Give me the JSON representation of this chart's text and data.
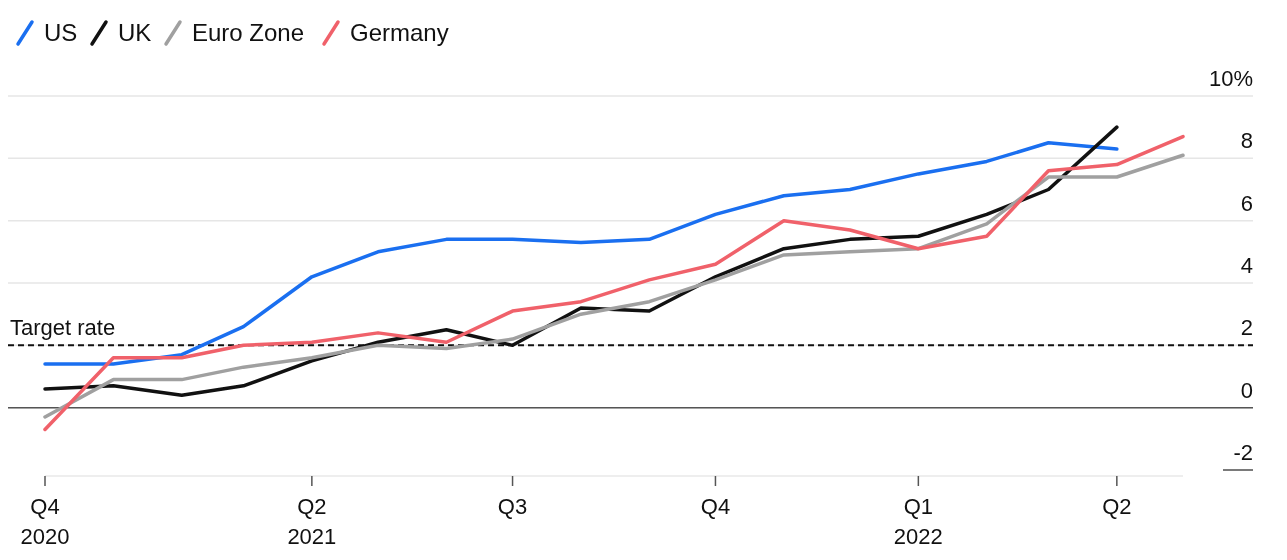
{
  "chart_data": {
    "type": "line",
    "x": [
      "2020-12",
      "2021-01",
      "2021-02",
      "2021-03",
      "2021-04",
      "2021-05",
      "2021-06",
      "2021-07",
      "2021-08",
      "2021-09",
      "2021-10",
      "2021-11",
      "2021-12",
      "2022-01",
      "2022-02",
      "2022-03",
      "2022-04",
      "2022-05"
    ],
    "series": [
      {
        "name": "US",
        "color": "#1a6ff0",
        "values": [
          1.4,
          1.4,
          1.7,
          2.6,
          4.2,
          5.0,
          5.4,
          5.4,
          5.3,
          5.4,
          6.2,
          6.8,
          7.0,
          7.5,
          7.9,
          8.5,
          8.3,
          null
        ]
      },
      {
        "name": "UK",
        "color": "#111111",
        "values": [
          0.6,
          0.7,
          0.4,
          0.7,
          1.5,
          2.1,
          2.5,
          2.0,
          3.2,
          3.1,
          4.2,
          5.1,
          5.4,
          5.5,
          6.2,
          7.0,
          9.0,
          null
        ]
      },
      {
        "name": "Euro Zone",
        "color": "#a0a0a0",
        "values": [
          -0.3,
          0.9,
          0.9,
          1.3,
          1.6,
          2.0,
          1.9,
          2.2,
          3.0,
          3.4,
          4.1,
          4.9,
          5.0,
          5.1,
          5.9,
          7.4,
          7.4,
          8.1
        ]
      },
      {
        "name": "Germany",
        "color": "#f0616a",
        "values": [
          -0.7,
          1.6,
          1.6,
          2.0,
          2.1,
          2.4,
          2.1,
          3.1,
          3.4,
          4.1,
          4.6,
          6.0,
          5.7,
          5.1,
          5.5,
          7.6,
          7.8,
          8.7
        ]
      }
    ],
    "xticks": [
      {
        "value": "2020-12",
        "label": "Q4\n2020"
      },
      {
        "value": "2021-04",
        "label": "Q2\n2021"
      },
      {
        "value": "2021-07",
        "label": "Q3"
      },
      {
        "value": "2021-10",
        "label": "Q4"
      },
      {
        "value": "2022-01",
        "label": "Q1\n2022"
      },
      {
        "value": "2022-04",
        "label": "Q2"
      }
    ],
    "xlim": [
      "2020-12",
      "2022-05"
    ],
    "ylim": [
      -2,
      10
    ],
    "yticks": [
      {
        "value": -2,
        "label": "-2"
      },
      0,
      2,
      4,
      6,
      8,
      {
        "value": 10,
        "label": "10%"
      }
    ],
    "ref_lines": [
      {
        "axis": "y",
        "value": 2,
        "label": "Target rate",
        "line_style": "dashed",
        "color": "#111111"
      }
    ],
    "grid": "y",
    "legend": "top left",
    "marker": "none",
    "line_style": "solid"
  }
}
